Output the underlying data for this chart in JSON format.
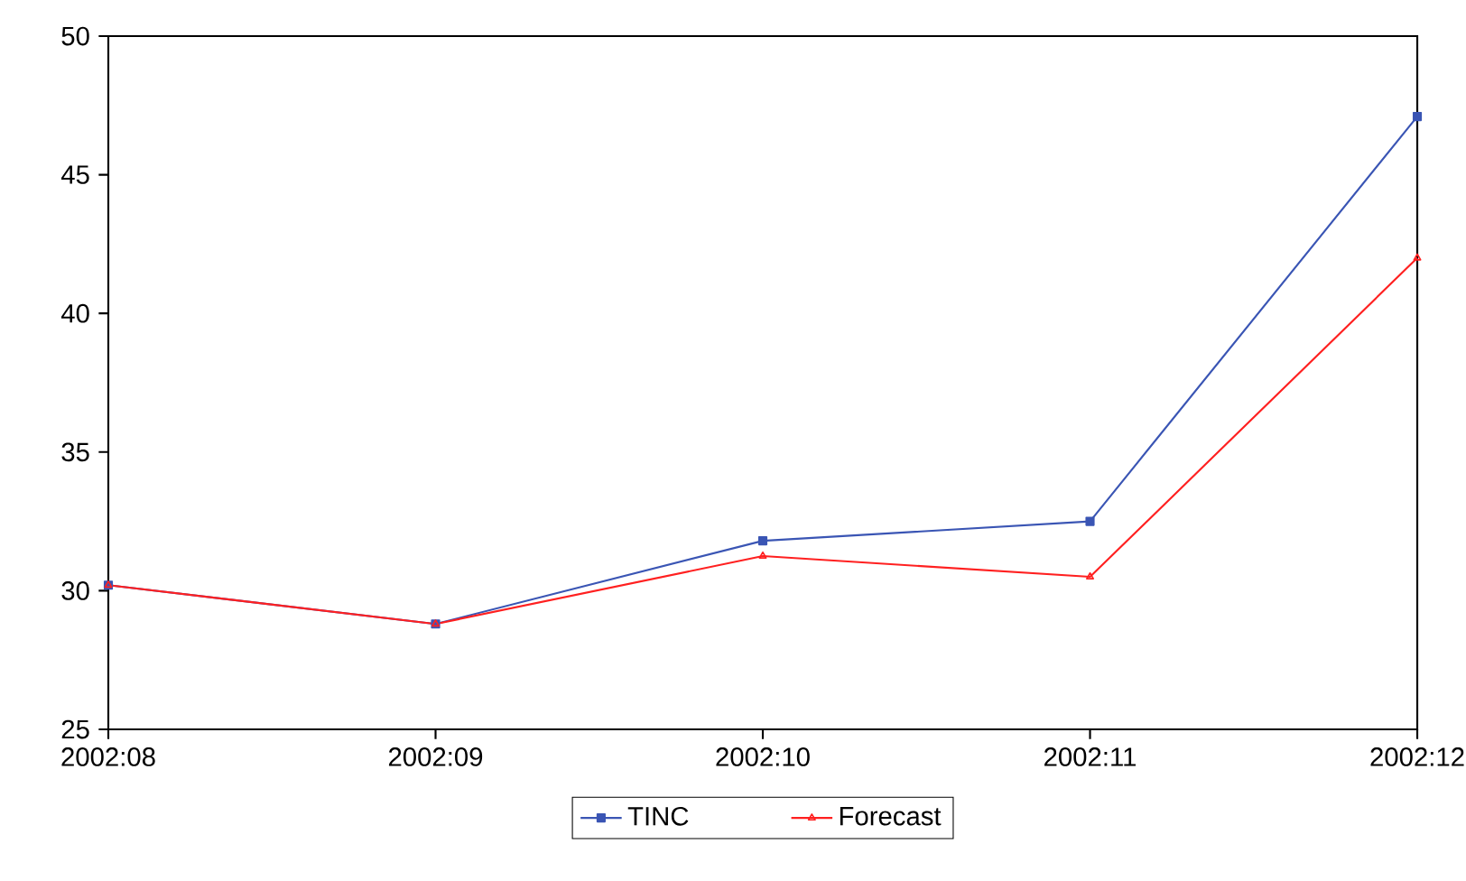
{
  "chart_data": {
    "type": "line",
    "categories": [
      "2002:08",
      "2002:09",
      "2002:10",
      "2002:11",
      "2002:12"
    ],
    "series": [
      {
        "name": "TINC",
        "color": "#3a55b4",
        "marker": "square",
        "values": [
          30.2,
          28.8,
          31.8,
          32.5,
          47.1
        ]
      },
      {
        "name": "Forecast",
        "color": "#ff2020",
        "marker": "triangle",
        "values": [
          30.2,
          28.8,
          31.25,
          30.5,
          42.0
        ]
      }
    ],
    "ylim": [
      25,
      50
    ],
    "yticks": [
      25,
      30,
      35,
      40,
      45,
      50
    ],
    "legend": "bottom",
    "grid": false
  }
}
